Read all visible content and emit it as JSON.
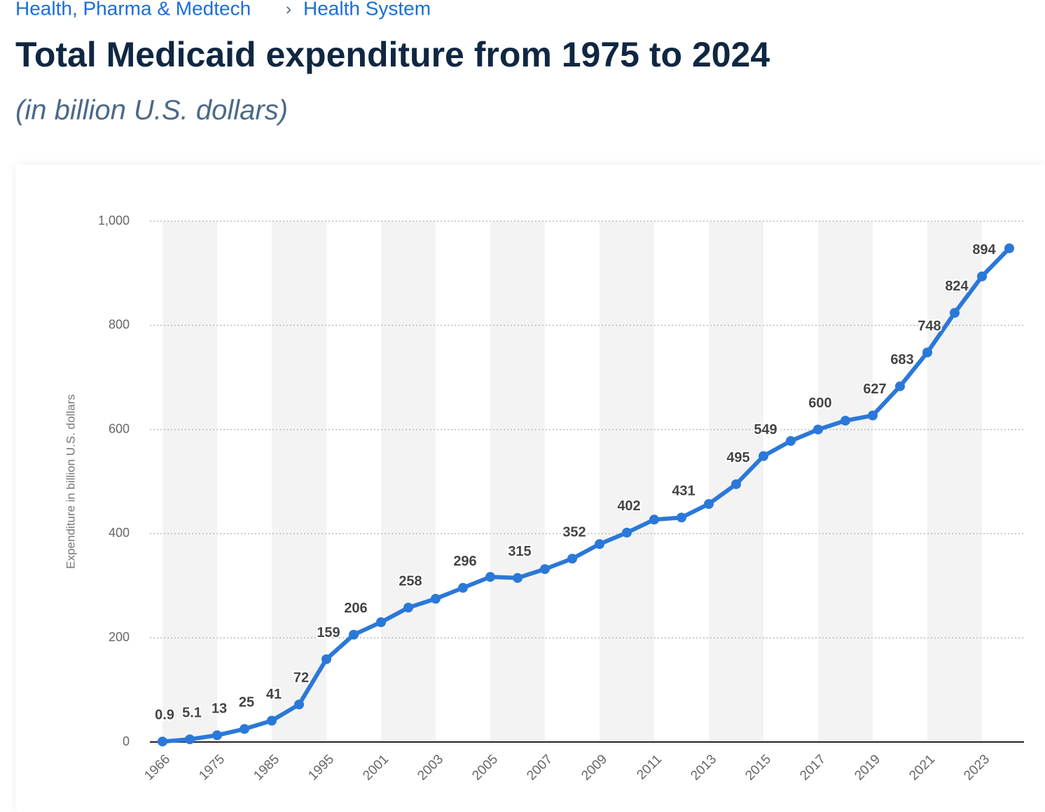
{
  "breadcrumb": {
    "items": [
      "Health, Pharma & Medtech",
      "Health System"
    ],
    "separator": "›"
  },
  "chart_data": {
    "type": "line",
    "title": "Total Medicaid expenditure from 1975 to 2024",
    "subtitle": "(in billion U.S. dollars)",
    "y_label": "Expenditure in billion U.S. dollars",
    "categories": [
      "1966",
      null,
      "1975",
      null,
      "1985",
      null,
      "1995",
      null,
      "2001",
      null,
      "2003",
      null,
      "2005",
      null,
      "2007",
      null,
      "2009",
      null,
      "2011",
      null,
      "2013",
      null,
      "2015",
      null,
      "2017",
      null,
      "2019",
      null,
      "2021",
      null,
      "2023",
      null
    ],
    "series": [
      {
        "name": "Expenditure",
        "color": "#2a78d8",
        "values": [
          0.9,
          5.1,
          13,
          25,
          41,
          72,
          159,
          206,
          230,
          258,
          275,
          296,
          317,
          315,
          332,
          352,
          380,
          402,
          427,
          431,
          457,
          495,
          549,
          578,
          600,
          617,
          627,
          683,
          748,
          824,
          894,
          948
        ],
        "value_labels": [
          "0.9",
          "5.1",
          "13",
          "25",
          "41",
          "72",
          "159",
          "206",
          null,
          "258",
          null,
          "296",
          null,
          "315",
          null,
          "352",
          null,
          "402",
          null,
          "431",
          null,
          "495",
          "549",
          null,
          "600",
          null,
          "627",
          "683",
          "748",
          "824",
          "894",
          null
        ]
      }
    ],
    "ylim": [
      0,
      1000
    ],
    "yticks": [
      0,
      200,
      400,
      600,
      800,
      {
        "value": 1000,
        "label": "1,000"
      }
    ],
    "grid": true
  }
}
